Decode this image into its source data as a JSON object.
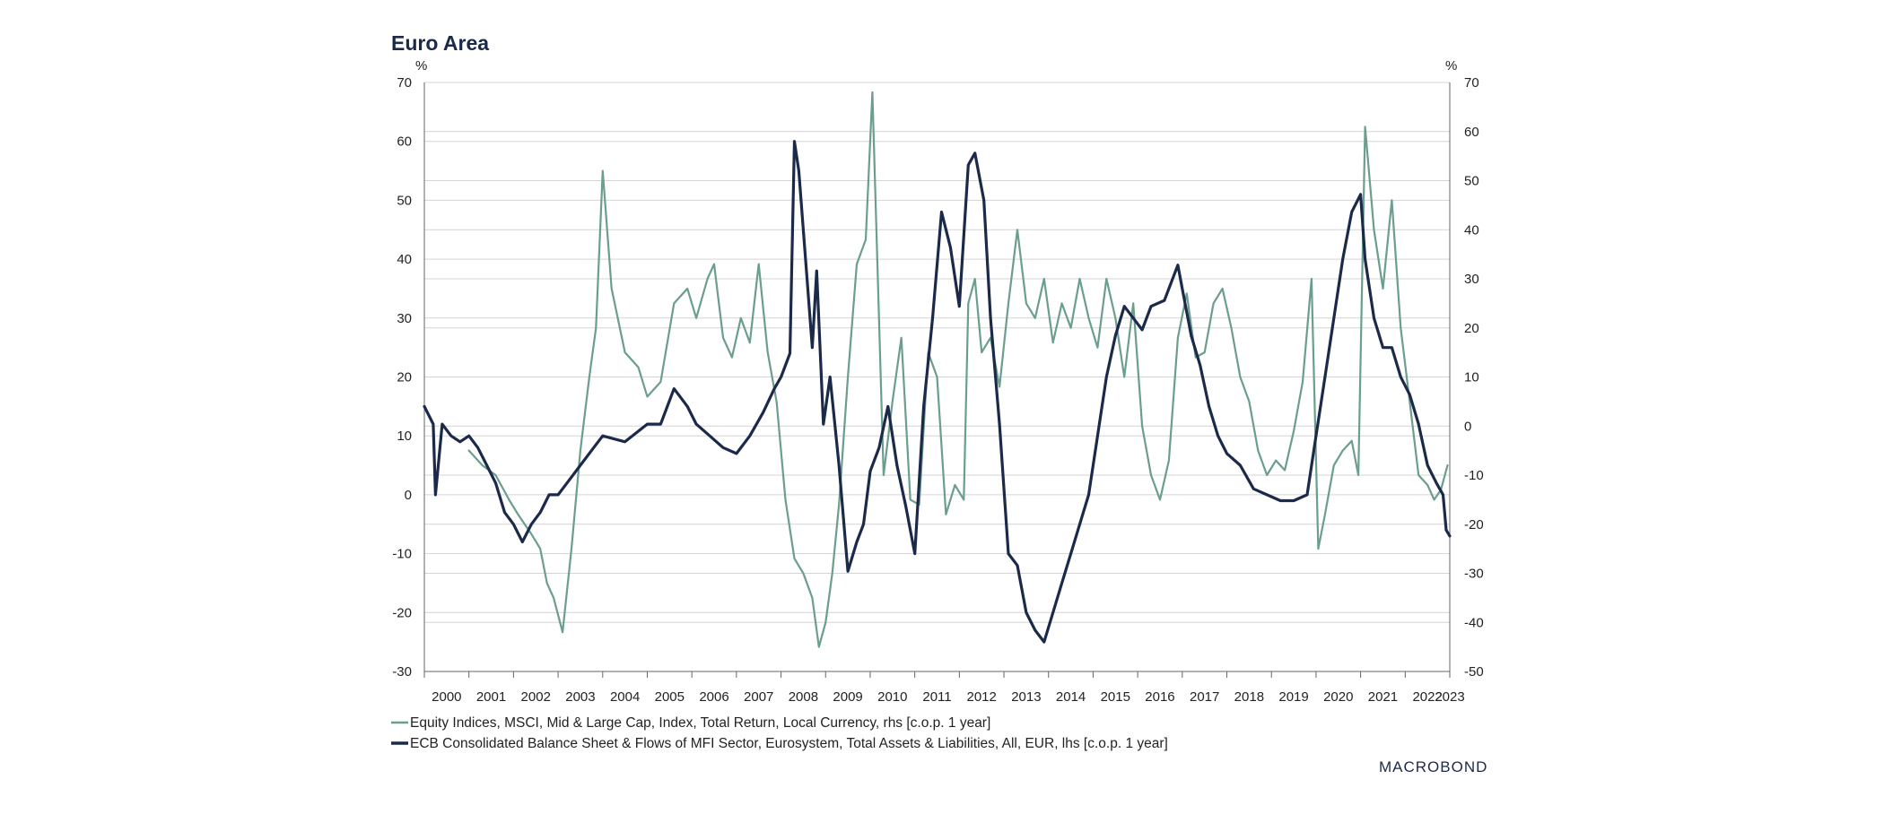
{
  "chart_data": {
    "type": "line",
    "title": "Euro Area",
    "left_unit": "%",
    "right_unit": "%",
    "left_axis": {
      "min": -30,
      "max": 70,
      "ticks": [
        70,
        60,
        50,
        40,
        30,
        20,
        10,
        0,
        -10,
        -20,
        -30
      ]
    },
    "right_axis": {
      "min": -50,
      "max": 70,
      "ticks": [
        70,
        60,
        50,
        40,
        30,
        20,
        10,
        0,
        -10,
        -20,
        -30,
        -40,
        -50
      ]
    },
    "x_axis": {
      "min": 2000.0,
      "max": 2023.0,
      "labels": [
        "2000",
        "2001",
        "2002",
        "2003",
        "2004",
        "2005",
        "2006",
        "2007",
        "2008",
        "2009",
        "2010",
        "2011",
        "2012",
        "2013",
        "2014",
        "2015",
        "2016",
        "2017",
        "2018",
        "2019",
        "2020",
        "2021",
        "2022",
        "2023"
      ]
    },
    "grid": true,
    "legend_position": "bottom-left",
    "brand": "MACROBOND",
    "series": [
      {
        "name": "Equity Indices, MSCI, Mid & Large Cap, Index, Total Return, Local Currency, rhs [c.o.p. 1 year]",
        "axis": "right",
        "color": "#6b9e8c",
        "x": [
          2001.0,
          2001.3,
          2001.6,
          2001.9,
          2002.1,
          2002.4,
          2002.6,
          2002.75,
          2002.9,
          2003.1,
          2003.3,
          2003.5,
          2003.7,
          2003.85,
          2004.0,
          2004.2,
          2004.5,
          2004.8,
          2005.0,
          2005.3,
          2005.6,
          2005.9,
          2006.1,
          2006.35,
          2006.5,
          2006.7,
          2006.9,
          2007.1,
          2007.3,
          2007.5,
          2007.7,
          2007.9,
          2008.1,
          2008.3,
          2008.5,
          2008.7,
          2008.85,
          2009.0,
          2009.15,
          2009.3,
          2009.5,
          2009.7,
          2009.9,
          2010.05,
          2010.3,
          2010.5,
          2010.7,
          2010.9,
          2011.1,
          2011.3,
          2011.5,
          2011.7,
          2011.9,
          2012.1,
          2012.2,
          2012.35,
          2012.5,
          2012.7,
          2012.9,
          2013.1,
          2013.3,
          2013.5,
          2013.7,
          2013.9,
          2014.1,
          2014.3,
          2014.5,
          2014.7,
          2014.9,
          2015.1,
          2015.3,
          2015.5,
          2015.7,
          2015.9,
          2016.1,
          2016.3,
          2016.5,
          2016.7,
          2016.9,
          2017.1,
          2017.3,
          2017.5,
          2017.7,
          2017.9,
          2018.1,
          2018.3,
          2018.5,
          2018.7,
          2018.9,
          2019.1,
          2019.3,
          2019.5,
          2019.7,
          2019.9,
          2020.05,
          2020.2,
          2020.4,
          2020.6,
          2020.8,
          2020.95,
          2021.1,
          2021.3,
          2021.5,
          2021.7,
          2021.9,
          2022.1,
          2022.3,
          2022.5,
          2022.65,
          2022.8,
          2022.95
        ],
        "y": [
          -5,
          -8,
          -10,
          -15,
          -18,
          -22,
          -25,
          -32,
          -35,
          -42,
          -25,
          -5,
          10,
          20,
          52,
          28,
          15,
          12,
          6,
          9,
          25,
          28,
          22,
          30,
          33,
          18,
          14,
          22,
          17,
          33,
          15,
          5,
          -15,
          -27,
          -30,
          -35,
          -45,
          -40,
          -30,
          -16,
          10,
          33,
          38,
          68,
          -10,
          5,
          18,
          -15,
          -16,
          15,
          10,
          -18,
          -12,
          -15,
          25,
          30,
          15,
          18,
          8,
          25,
          40,
          25,
          22,
          30,
          17,
          25,
          20,
          30,
          22,
          16,
          30,
          22,
          10,
          25,
          0,
          -10,
          -15,
          -7,
          18,
          27,
          14,
          15,
          25,
          28,
          20,
          10,
          5,
          -5,
          -10,
          -7,
          -9,
          -1,
          9,
          30,
          -25,
          -18,
          -8,
          -5,
          -3,
          -10,
          61,
          40,
          28,
          46,
          20,
          5,
          -10,
          -12,
          -15,
          -13,
          -8
        ]
      },
      {
        "name": "ECB Consolidated Balance Sheet & Flows of MFI Sector, Eurosystem, Total Assets & Liabilities, All, EUR, lhs [c.o.p. 1 year]",
        "axis": "left",
        "color": "#1b2a4a",
        "x": [
          2000.0,
          2000.2,
          2000.25,
          2000.4,
          2000.6,
          2000.8,
          2001.0,
          2001.2,
          2001.4,
          2001.6,
          2001.8,
          2002.0,
          2002.2,
          2002.4,
          2002.6,
          2002.8,
          2003.0,
          2003.3,
          2003.5,
          2003.8,
          2004.0,
          2004.5,
          2005.0,
          2005.3,
          2005.6,
          2005.9,
          2006.1,
          2006.4,
          2006.7,
          2007.0,
          2007.3,
          2007.6,
          2007.85,
          2008.0,
          2008.2,
          2008.3,
          2008.4,
          2008.5,
          2008.6,
          2008.7,
          2008.8,
          2008.95,
          2009.1,
          2009.3,
          2009.5,
          2009.7,
          2009.85,
          2010.0,
          2010.2,
          2010.4,
          2010.6,
          2010.8,
          2011.0,
          2011.2,
          2011.4,
          2011.6,
          2011.8,
          2012.0,
          2012.2,
          2012.35,
          2012.55,
          2012.7,
          2012.9,
          2013.1,
          2013.3,
          2013.5,
          2013.7,
          2013.9,
          2014.1,
          2014.3,
          2014.5,
          2014.7,
          2014.9,
          2015.1,
          2015.3,
          2015.5,
          2015.7,
          2015.9,
          2016.1,
          2016.3,
          2016.6,
          2016.9,
          2017.0,
          2017.2,
          2017.4,
          2017.6,
          2017.8,
          2018.0,
          2018.3,
          2018.6,
          2018.9,
          2019.2,
          2019.5,
          2019.8,
          2020.0,
          2020.2,
          2020.4,
          2020.6,
          2020.8,
          2021.0,
          2021.1,
          2021.3,
          2021.5,
          2021.7,
          2021.9,
          2022.1,
          2022.3,
          2022.5,
          2022.7,
          2022.85,
          2022.92,
          2023.0
        ],
        "y": [
          15,
          12,
          0,
          12,
          10,
          9,
          10,
          8,
          5,
          2,
          -3,
          -5,
          -8,
          -5,
          -3,
          0,
          0,
          3,
          5,
          8,
          10,
          9,
          12,
          12,
          18,
          15,
          12,
          10,
          8,
          7,
          10,
          14,
          18,
          20,
          24,
          60,
          55,
          45,
          35,
          25,
          38,
          12,
          20,
          5,
          -13,
          -8,
          -5,
          4,
          8,
          15,
          5,
          -2,
          -10,
          15,
          30,
          48,
          42,
          32,
          56,
          58,
          50,
          30,
          12,
          -10,
          -12,
          -20,
          -23,
          -25,
          -20,
          -15,
          -10,
          -5,
          0,
          10,
          20,
          27,
          32,
          30,
          28,
          32,
          33,
          39,
          35,
          27,
          22,
          15,
          10,
          7,
          5,
          1,
          0,
          -1,
          -1,
          0,
          10,
          20,
          30,
          40,
          48,
          51,
          40,
          30,
          25,
          25,
          20,
          17,
          12,
          5,
          2,
          0,
          -6,
          -7
        ]
      }
    ]
  }
}
